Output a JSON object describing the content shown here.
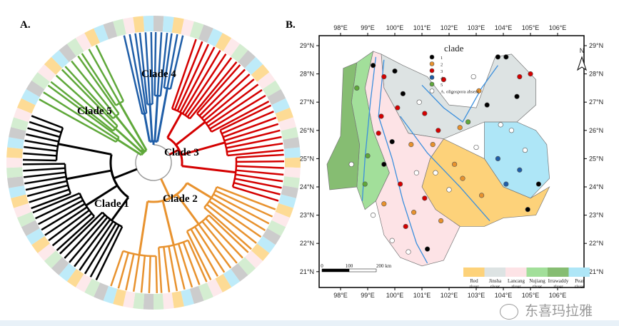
{
  "panel_a": {
    "label": "A.",
    "clades": [
      {
        "name": "Clade 1",
        "color": "#000000",
        "tips": 30
      },
      {
        "name": "Clade 2",
        "color": "#e8922e",
        "tips": 28
      },
      {
        "name": "Clade 3",
        "color": "#d40000",
        "tips": 30
      },
      {
        "name": "Clade 4",
        "color": "#1f5ea8",
        "tips": 10
      },
      {
        "name": "Clade 5",
        "color": "#5fa83a",
        "tips": 12
      }
    ]
  },
  "panel_b": {
    "label": "B.",
    "legend_title": "clade",
    "legend_items": [
      {
        "label": "1",
        "color": "#000000"
      },
      {
        "label": "2",
        "color": "#e8922e"
      },
      {
        "label": "3",
        "color": "#d40000"
      },
      {
        "label": "4",
        "color": "#1f5ea8"
      },
      {
        "label": "5",
        "color": "#5fa83a"
      },
      {
        "label": "A. oligospora absent",
        "color": "#ffffff"
      }
    ],
    "lon_ticks": [
      "98°E",
      "99°E",
      "100°E",
      "101°E",
      "102°E",
      "103°E",
      "104°E",
      "105°E",
      "106°E"
    ],
    "lat_ticks": [
      "29°N",
      "28°N",
      "27°N",
      "26°N",
      "25°N",
      "24°N",
      "23°N",
      "22°N",
      "21°N"
    ],
    "scale": {
      "labels": [
        "0",
        "100",
        "200  km"
      ]
    },
    "north": "N",
    "rivers": [
      {
        "name": "Red river",
        "color": "#fdd27a"
      },
      {
        "name": "Jinsha river",
        "color": "#dde3e3"
      },
      {
        "name": "Lancang river",
        "color": "#fde3e6"
      },
      {
        "name": "Nujiang river",
        "color": "#a2df9a"
      },
      {
        "name": "Irrawaddy river",
        "color": "#86bd72"
      },
      {
        "name": "Pear river",
        "color": "#aee6f7"
      }
    ],
    "sites": [
      [
        99.2,
        28.3,
        1
      ],
      [
        99.6,
        27.9,
        3
      ],
      [
        100.3,
        27.3,
        1
      ],
      [
        101.1,
        26.6,
        3
      ],
      [
        101.8,
        27.8,
        3
      ],
      [
        103.8,
        28.6,
        1
      ],
      [
        104.1,
        28.6,
        1
      ],
      [
        104.6,
        27.9,
        3
      ],
      [
        105.0,
        28.0,
        3
      ],
      [
        104.5,
        27.2,
        1
      ],
      [
        103.4,
        26.9,
        1
      ],
      [
        103.1,
        27.4,
        2
      ],
      [
        99.5,
        26.5,
        3
      ],
      [
        100.1,
        26.8,
        3
      ],
      [
        99.9,
        25.6,
        1
      ],
      [
        99.4,
        25.9,
        3
      ],
      [
        100.6,
        25.5,
        2
      ],
      [
        101.4,
        25.5,
        2
      ],
      [
        102.2,
        24.8,
        2
      ],
      [
        102.5,
        24.3,
        2
      ],
      [
        103.2,
        23.7,
        2
      ],
      [
        103.8,
        25.0,
        4
      ],
      [
        104.6,
        24.6,
        4
      ],
      [
        104.1,
        24.1,
        4
      ],
      [
        105.3,
        24.1,
        1
      ],
      [
        104.9,
        23.2,
        1
      ],
      [
        99.0,
        25.1,
        5
      ],
      [
        98.9,
        24.1,
        5
      ],
      [
        99.6,
        24.8,
        1
      ],
      [
        100.2,
        24.1,
        3
      ],
      [
        100.7,
        23.1,
        2
      ],
      [
        101.1,
        23.6,
        3
      ],
      [
        101.7,
        22.8,
        2
      ],
      [
        100.4,
        22.6,
        3
      ],
      [
        101.2,
        21.8,
        1
      ],
      [
        99.6,
        23.4,
        2
      ],
      [
        102.7,
        26.3,
        5
      ],
      [
        102.4,
        26.1,
        2
      ],
      [
        101.6,
        26.0,
        3
      ],
      [
        98.6,
        27.5,
        5
      ],
      [
        100.0,
        28.1,
        1
      ],
      [
        103.9,
        26.2,
        "a"
      ],
      [
        104.3,
        26.0,
        "a"
      ],
      [
        102.0,
        23.9,
        "a"
      ],
      [
        100.8,
        24.5,
        "a"
      ],
      [
        99.2,
        23.0,
        "a"
      ],
      [
        98.4,
        24.8,
        "a"
      ],
      [
        101.5,
        24.5,
        "a"
      ],
      [
        100.5,
        21.7,
        "a"
      ],
      [
        103.0,
        25.4,
        "a"
      ],
      [
        104.8,
        25.3,
        "a"
      ],
      [
        102.9,
        27.9,
        "a"
      ],
      [
        100.9,
        27.0,
        "a"
      ],
      [
        99.9,
        22.1,
        "a"
      ]
    ]
  },
  "watermark": "东喜玛拉雅"
}
